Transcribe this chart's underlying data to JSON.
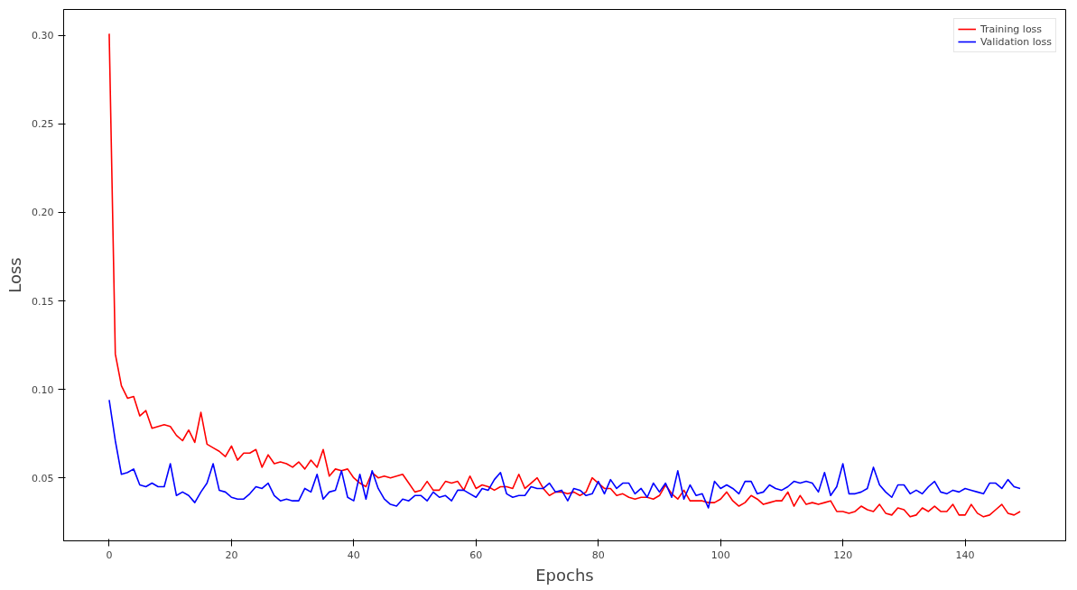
{
  "chart_data": {
    "type": "line",
    "xlabel": "Epochs",
    "ylabel": "Loss",
    "x": [
      0,
      1,
      2,
      3,
      4,
      5,
      6,
      7,
      8,
      9,
      10,
      11,
      12,
      13,
      14,
      15,
      16,
      17,
      18,
      19,
      20,
      21,
      22,
      23,
      24,
      25,
      26,
      27,
      28,
      29,
      30,
      31,
      32,
      33,
      34,
      35,
      36,
      37,
      38,
      39,
      40,
      41,
      42,
      43,
      44,
      45,
      46,
      47,
      48,
      49,
      50,
      51,
      52,
      53,
      54,
      55,
      56,
      57,
      58,
      59,
      60,
      61,
      62,
      63,
      64,
      65,
      66,
      67,
      68,
      69,
      70,
      71,
      72,
      73,
      74,
      75,
      76,
      77,
      78,
      79,
      80,
      81,
      82,
      83,
      84,
      85,
      86,
      87,
      88,
      89,
      90,
      91,
      92,
      93,
      94,
      95,
      96,
      97,
      98,
      99,
      100,
      101,
      102,
      103,
      104,
      105,
      106,
      107,
      108,
      109,
      110,
      111,
      112,
      113,
      114,
      115,
      116,
      117,
      118,
      119,
      120,
      121,
      122,
      123,
      124,
      125,
      126,
      127,
      128,
      129,
      130,
      131,
      132,
      133,
      134,
      135,
      136,
      137,
      138,
      139,
      140,
      141,
      142,
      143,
      144,
      145,
      146,
      147,
      148,
      149
    ],
    "series": [
      {
        "name": "Training loss",
        "color": "#ff0000",
        "values": [
          0.301,
          0.12,
          0.102,
          0.095,
          0.096,
          0.085,
          0.088,
          0.078,
          0.079,
          0.08,
          0.079,
          0.074,
          0.071,
          0.077,
          0.07,
          0.087,
          0.069,
          0.067,
          0.065,
          0.062,
          0.068,
          0.06,
          0.064,
          0.064,
          0.066,
          0.056,
          0.063,
          0.058,
          0.059,
          0.058,
          0.056,
          0.059,
          0.055,
          0.06,
          0.056,
          0.066,
          0.051,
          0.055,
          0.054,
          0.055,
          0.05,
          0.047,
          0.045,
          0.053,
          0.05,
          0.051,
          0.05,
          0.051,
          0.052,
          0.047,
          0.042,
          0.043,
          0.048,
          0.043,
          0.043,
          0.048,
          0.047,
          0.048,
          0.043,
          0.051,
          0.044,
          0.046,
          0.045,
          0.043,
          0.045,
          0.045,
          0.044,
          0.052,
          0.044,
          0.047,
          0.05,
          0.044,
          0.04,
          0.042,
          0.042,
          0.041,
          0.042,
          0.04,
          0.042,
          0.05,
          0.047,
          0.044,
          0.044,
          0.04,
          0.041,
          0.039,
          0.038,
          0.039,
          0.039,
          0.038,
          0.04,
          0.046,
          0.041,
          0.038,
          0.043,
          0.037,
          0.037,
          0.037,
          0.036,
          0.036,
          0.038,
          0.042,
          0.037,
          0.034,
          0.036,
          0.04,
          0.038,
          0.035,
          0.036,
          0.037,
          0.037,
          0.042,
          0.034,
          0.04,
          0.035,
          0.036,
          0.035,
          0.036,
          0.037,
          0.031,
          0.031,
          0.03,
          0.031,
          0.034,
          0.032,
          0.031,
          0.035,
          0.03,
          0.029,
          0.033,
          0.032,
          0.028,
          0.029,
          0.033,
          0.031,
          0.034,
          0.031,
          0.031,
          0.035,
          0.029,
          0.029,
          0.035,
          0.03,
          0.028,
          0.029,
          0.032,
          0.035,
          0.03,
          0.029,
          0.031
        ]
      },
      {
        "name": "Validation loss",
        "color": "#0000ff",
        "values": [
          0.094,
          0.071,
          0.052,
          0.053,
          0.055,
          0.046,
          0.045,
          0.047,
          0.045,
          0.045,
          0.058,
          0.04,
          0.042,
          0.04,
          0.036,
          0.042,
          0.047,
          0.058,
          0.043,
          0.042,
          0.039,
          0.038,
          0.038,
          0.041,
          0.045,
          0.044,
          0.047,
          0.04,
          0.037,
          0.038,
          0.037,
          0.037,
          0.044,
          0.042,
          0.052,
          0.038,
          0.042,
          0.043,
          0.054,
          0.039,
          0.037,
          0.052,
          0.038,
          0.054,
          0.044,
          0.038,
          0.035,
          0.034,
          0.038,
          0.037,
          0.04,
          0.04,
          0.037,
          0.042,
          0.039,
          0.04,
          0.037,
          0.043,
          0.043,
          0.041,
          0.039,
          0.044,
          0.043,
          0.049,
          0.053,
          0.041,
          0.039,
          0.04,
          0.04,
          0.045,
          0.044,
          0.044,
          0.047,
          0.042,
          0.043,
          0.037,
          0.044,
          0.043,
          0.04,
          0.041,
          0.048,
          0.041,
          0.049,
          0.044,
          0.047,
          0.047,
          0.041,
          0.044,
          0.039,
          0.047,
          0.042,
          0.047,
          0.039,
          0.054,
          0.038,
          0.046,
          0.04,
          0.041,
          0.033,
          0.048,
          0.044,
          0.046,
          0.044,
          0.041,
          0.048,
          0.048,
          0.041,
          0.042,
          0.046,
          0.044,
          0.043,
          0.045,
          0.048,
          0.047,
          0.048,
          0.047,
          0.042,
          0.053,
          0.04,
          0.045,
          0.058,
          0.041,
          0.041,
          0.042,
          0.044,
          0.056,
          0.046,
          0.042,
          0.039,
          0.046,
          0.046,
          0.041,
          0.043,
          0.041,
          0.045,
          0.048,
          0.042,
          0.041,
          0.043,
          0.042,
          0.044,
          0.043,
          0.042,
          0.041,
          0.047,
          0.047,
          0.044,
          0.049,
          0.045,
          0.044
        ]
      }
    ],
    "xlim": [
      -7.45,
      156.45
    ],
    "xticks": [
      0,
      20,
      40,
      60,
      80,
      100,
      120,
      140
    ],
    "ylim": [
      0.0144,
      0.3147
    ],
    "yticks": [
      0.05,
      {
        "value": 0.1,
        "label": "0.10"
      },
      0.15,
      {
        "value": 0.2,
        "label": "0.20"
      },
      0.25,
      {
        "value": 0.3,
        "label": "0.30"
      }
    ],
    "grid": false,
    "legend": "top right",
    "line_style": "solid",
    "marker": "none"
  }
}
